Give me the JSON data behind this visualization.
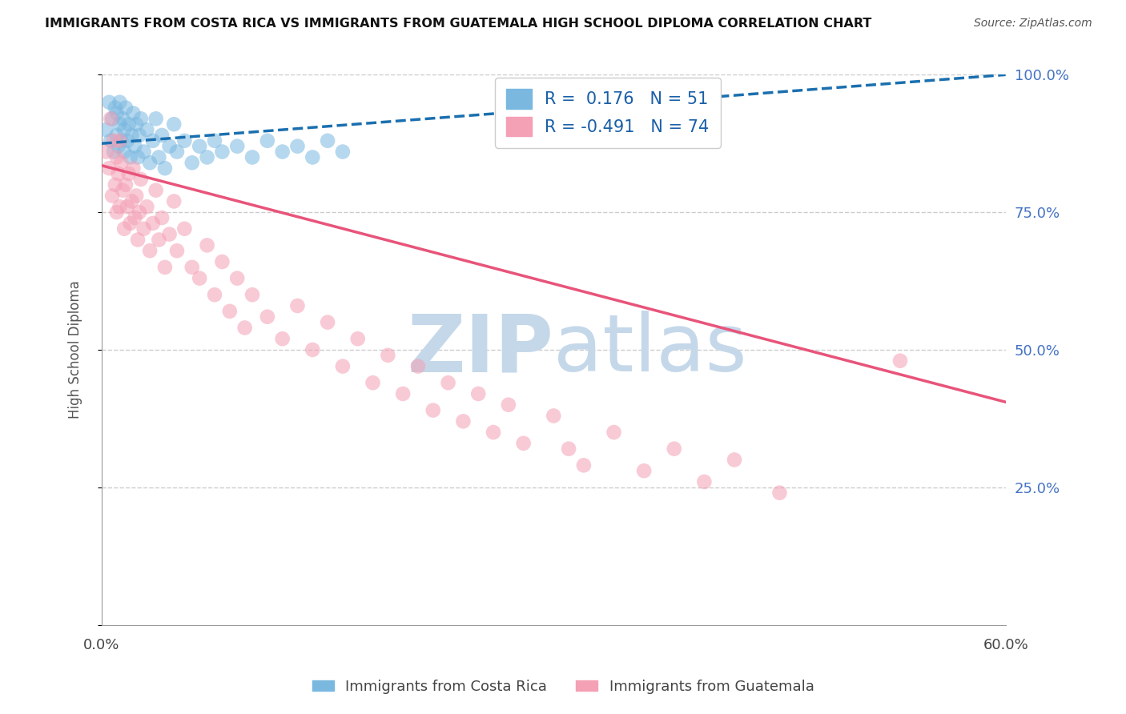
{
  "title": "IMMIGRANTS FROM COSTA RICA VS IMMIGRANTS FROM GUATEMALA HIGH SCHOOL DIPLOMA CORRELATION CHART",
  "source": "Source: ZipAtlas.com",
  "ylabel": "High School Diploma",
  "xmin": 0.0,
  "xmax": 0.6,
  "ymin": 0.0,
  "ymax": 1.0,
  "yticks": [
    0.0,
    0.25,
    0.5,
    0.75,
    1.0
  ],
  "ytick_labels": [
    "",
    "25.0%",
    "50.0%",
    "75.0%",
    "100.0%"
  ],
  "legend_r_costa_rica": "0.176",
  "legend_n_costa_rica": "51",
  "legend_r_guatemala": "-0.491",
  "legend_n_guatemala": "74",
  "blue_color": "#7ab8e0",
  "pink_color": "#f4a0b5",
  "blue_line_color": "#1a6faf",
  "pink_line_color": "#e8547a",
  "watermark_color": "#c5d8ea",
  "costa_rica_x": [
    0.003,
    0.005,
    0.006,
    0.007,
    0.008,
    0.009,
    0.01,
    0.01,
    0.011,
    0.012,
    0.012,
    0.013,
    0.014,
    0.015,
    0.015,
    0.016,
    0.017,
    0.018,
    0.019,
    0.02,
    0.021,
    0.022,
    0.023,
    0.024,
    0.025,
    0.026,
    0.028,
    0.03,
    0.032,
    0.034,
    0.036,
    0.038,
    0.04,
    0.042,
    0.045,
    0.048,
    0.05,
    0.055,
    0.06,
    0.065,
    0.07,
    0.075,
    0.08,
    0.09,
    0.1,
    0.11,
    0.12,
    0.13,
    0.14,
    0.15,
    0.16
  ],
  "costa_rica_y": [
    0.9,
    0.95,
    0.88,
    0.92,
    0.86,
    0.94,
    0.89,
    0.93,
    0.87,
    0.91,
    0.95,
    0.88,
    0.92,
    0.86,
    0.9,
    0.94,
    0.88,
    0.91,
    0.85,
    0.89,
    0.93,
    0.87,
    0.91,
    0.85,
    0.89,
    0.92,
    0.86,
    0.9,
    0.84,
    0.88,
    0.92,
    0.85,
    0.89,
    0.83,
    0.87,
    0.91,
    0.86,
    0.88,
    0.84,
    0.87,
    0.85,
    0.88,
    0.86,
    0.87,
    0.85,
    0.88,
    0.86,
    0.87,
    0.85,
    0.88,
    0.86
  ],
  "guatemala_x": [
    0.003,
    0.005,
    0.006,
    0.007,
    0.008,
    0.009,
    0.01,
    0.01,
    0.011,
    0.012,
    0.012,
    0.013,
    0.014,
    0.015,
    0.016,
    0.017,
    0.018,
    0.019,
    0.02,
    0.021,
    0.022,
    0.023,
    0.024,
    0.025,
    0.026,
    0.028,
    0.03,
    0.032,
    0.034,
    0.036,
    0.038,
    0.04,
    0.042,
    0.045,
    0.048,
    0.05,
    0.055,
    0.06,
    0.065,
    0.07,
    0.075,
    0.08,
    0.085,
    0.09,
    0.095,
    0.1,
    0.11,
    0.12,
    0.13,
    0.14,
    0.15,
    0.16,
    0.17,
    0.18,
    0.19,
    0.2,
    0.21,
    0.22,
    0.23,
    0.24,
    0.25,
    0.26,
    0.27,
    0.28,
    0.3,
    0.31,
    0.32,
    0.34,
    0.36,
    0.38,
    0.4,
    0.42,
    0.45,
    0.53
  ],
  "guatemala_y": [
    0.86,
    0.83,
    0.92,
    0.78,
    0.88,
    0.8,
    0.85,
    0.75,
    0.82,
    0.88,
    0.76,
    0.84,
    0.79,
    0.72,
    0.8,
    0.76,
    0.82,
    0.73,
    0.77,
    0.83,
    0.74,
    0.78,
    0.7,
    0.75,
    0.81,
    0.72,
    0.76,
    0.68,
    0.73,
    0.79,
    0.7,
    0.74,
    0.65,
    0.71,
    0.77,
    0.68,
    0.72,
    0.65,
    0.63,
    0.69,
    0.6,
    0.66,
    0.57,
    0.63,
    0.54,
    0.6,
    0.56,
    0.52,
    0.58,
    0.5,
    0.55,
    0.47,
    0.52,
    0.44,
    0.49,
    0.42,
    0.47,
    0.39,
    0.44,
    0.37,
    0.42,
    0.35,
    0.4,
    0.33,
    0.38,
    0.32,
    0.29,
    0.35,
    0.28,
    0.32,
    0.26,
    0.3,
    0.24,
    0.48
  ]
}
